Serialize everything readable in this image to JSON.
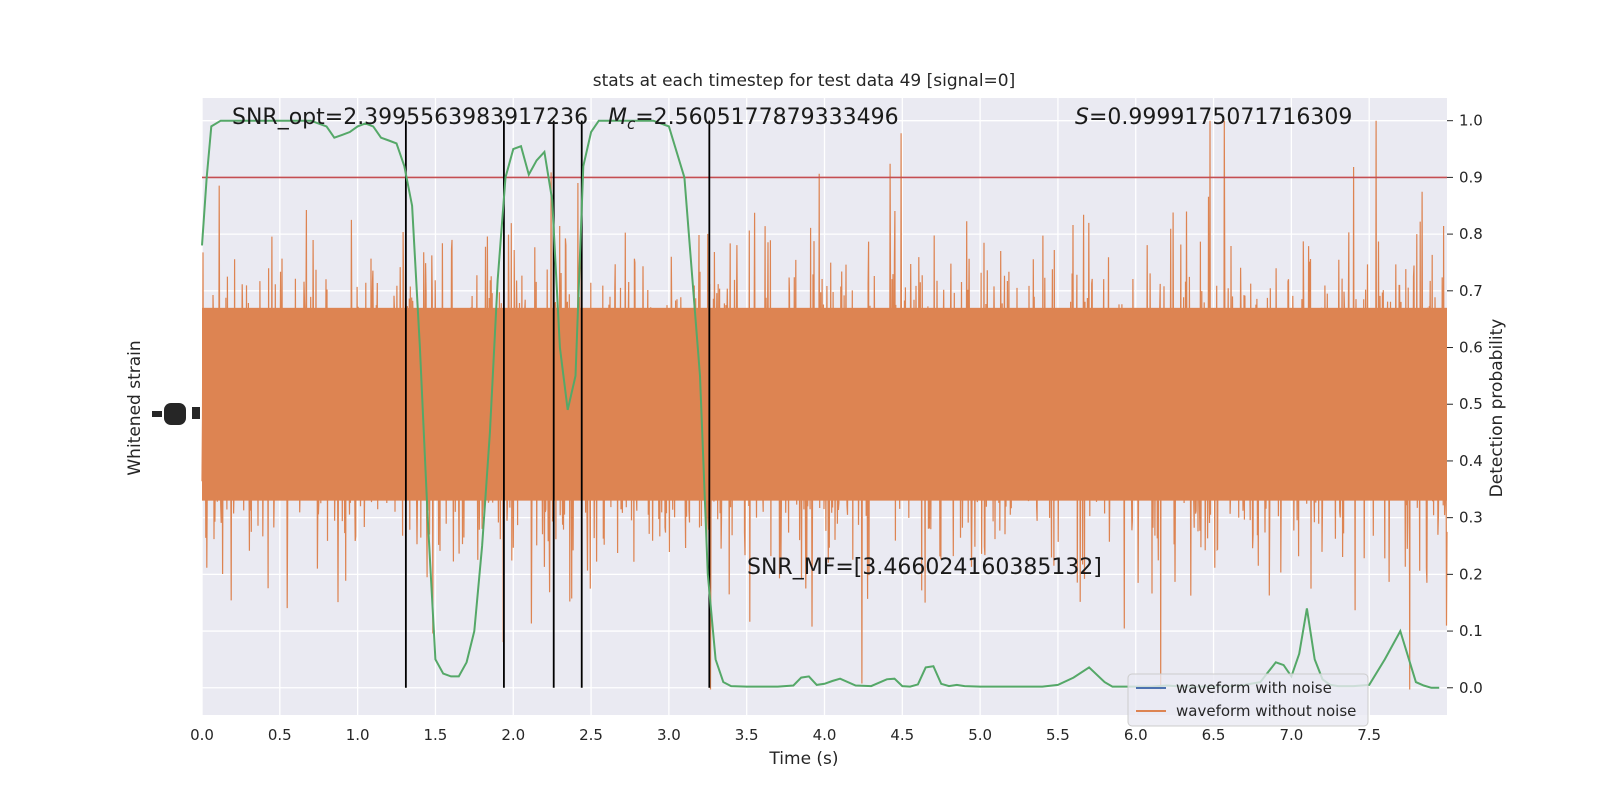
{
  "chart_data": {
    "type": "line",
    "title": "stats at each timestep for test data 49 [signal=0]",
    "xlabel": "Time (s)",
    "ylabel_left": "Whitened strain",
    "ylabel_right": "Detection probability",
    "xlim": [
      0.0,
      8.0
    ],
    "ylim_right": [
      -0.048,
      1.04
    ],
    "x_ticks": [
      "0.0",
      "0.5",
      "1.0",
      "1.5",
      "2.0",
      "2.5",
      "3.0",
      "3.5",
      "4.0",
      "4.5",
      "5.0",
      "5.5",
      "6.0",
      "6.5",
      "7.0",
      "7.5"
    ],
    "y_ticks_right": [
      "0.0",
      "0.1",
      "0.2",
      "0.3",
      "0.4",
      "0.5",
      "0.6",
      "0.7",
      "0.8",
      "0.9",
      "1.0"
    ],
    "threshold": 0.9,
    "vertical_lines": [
      1.31,
      1.94,
      2.26,
      2.44,
      3.26
    ],
    "annotations": {
      "snr_opt": "SNR_opt=2.3995563983917236",
      "mc_symbol": "M",
      "mc_subscript": "c",
      "mc_value": "=2.5605177879333496",
      "s_symbol": "S",
      "s_value": "=0.9999175071716309",
      "snr_mf": "SNR_MF=[3.466024160385132]"
    },
    "legend": {
      "position": "lower-right",
      "entries": [
        {
          "label": "waveform with noise",
          "color": "#4c72b0"
        },
        {
          "label": "waveform without noise",
          "color": "#dd8452"
        }
      ]
    },
    "series": [
      {
        "name": "waveform without noise",
        "color": "#dd8452",
        "style": "dense-noise",
        "center": 0.5,
        "typical_amplitude": 0.2,
        "max_amplitude": 0.5
      },
      {
        "color": "#55a868",
        "x": [
          0.0,
          0.03,
          0.06,
          0.12,
          0.2,
          0.3,
          0.4,
          0.5,
          0.6,
          0.7,
          0.8,
          0.85,
          0.9,
          0.95,
          1.0,
          1.05,
          1.1,
          1.15,
          1.2,
          1.25,
          1.3,
          1.35,
          1.4,
          1.45,
          1.5,
          1.55,
          1.6,
          1.65,
          1.7,
          1.75,
          1.8,
          1.85,
          1.9,
          1.95,
          2.0,
          2.05,
          2.1,
          2.15,
          2.2,
          2.25,
          2.3,
          2.35,
          2.4,
          2.45,
          2.5,
          2.55,
          2.6,
          2.7,
          2.8,
          2.9,
          3.0,
          3.1,
          3.2,
          3.25,
          3.3,
          3.35,
          3.4,
          3.5,
          3.6,
          3.7,
          3.8,
          3.85,
          3.9,
          3.95,
          4.0,
          4.05,
          4.1,
          4.2,
          4.3,
          4.4,
          4.45,
          4.5,
          4.55,
          4.6,
          4.65,
          4.7,
          4.75,
          4.8,
          4.85,
          4.9,
          5.0,
          5.1,
          5.2,
          5.3,
          5.4,
          5.5,
          5.6,
          5.7,
          5.8,
          5.85,
          5.9,
          6.0,
          6.1,
          6.2,
          6.3,
          6.4,
          6.5,
          6.6,
          6.7,
          6.8,
          6.9,
          6.95,
          7.0,
          7.05,
          7.1,
          7.15,
          7.2,
          7.25,
          7.3,
          7.4,
          7.5,
          7.6,
          7.7,
          7.8,
          7.85,
          7.9,
          7.95
        ],
        "y": [
          0.78,
          0.9,
          0.99,
          1.0,
          1.0,
          1.0,
          1.0,
          1.0,
          1.0,
          1.0,
          0.99,
          0.97,
          0.975,
          0.98,
          0.99,
          0.995,
          0.99,
          0.97,
          0.965,
          0.96,
          0.92,
          0.85,
          0.6,
          0.3,
          0.05,
          0.025,
          0.02,
          0.02,
          0.045,
          0.1,
          0.25,
          0.45,
          0.72,
          0.9,
          0.95,
          0.955,
          0.905,
          0.93,
          0.945,
          0.86,
          0.6,
          0.49,
          0.55,
          0.92,
          0.98,
          1.0,
          1.0,
          1.0,
          1.0,
          1.0,
          0.99,
          0.9,
          0.55,
          0.2,
          0.05,
          0.01,
          0.003,
          0.002,
          0.002,
          0.002,
          0.004,
          0.018,
          0.02,
          0.005,
          0.007,
          0.012,
          0.016,
          0.004,
          0.003,
          0.015,
          0.016,
          0.003,
          0.002,
          0.006,
          0.036,
          0.038,
          0.007,
          0.003,
          0.005,
          0.003,
          0.002,
          0.002,
          0.002,
          0.002,
          0.002,
          0.005,
          0.018,
          0.036,
          0.01,
          0.002,
          0.002,
          0.002,
          0.002,
          0.004,
          0.002,
          0.002,
          0.002,
          0.003,
          0.005,
          0.01,
          0.045,
          0.04,
          0.02,
          0.06,
          0.14,
          0.05,
          0.015,
          0.005,
          0.003,
          0.003,
          0.005,
          0.05,
          0.1,
          0.01,
          0.004,
          0.0,
          0.0
        ],
        "x_end": 7.95
      }
    ]
  }
}
